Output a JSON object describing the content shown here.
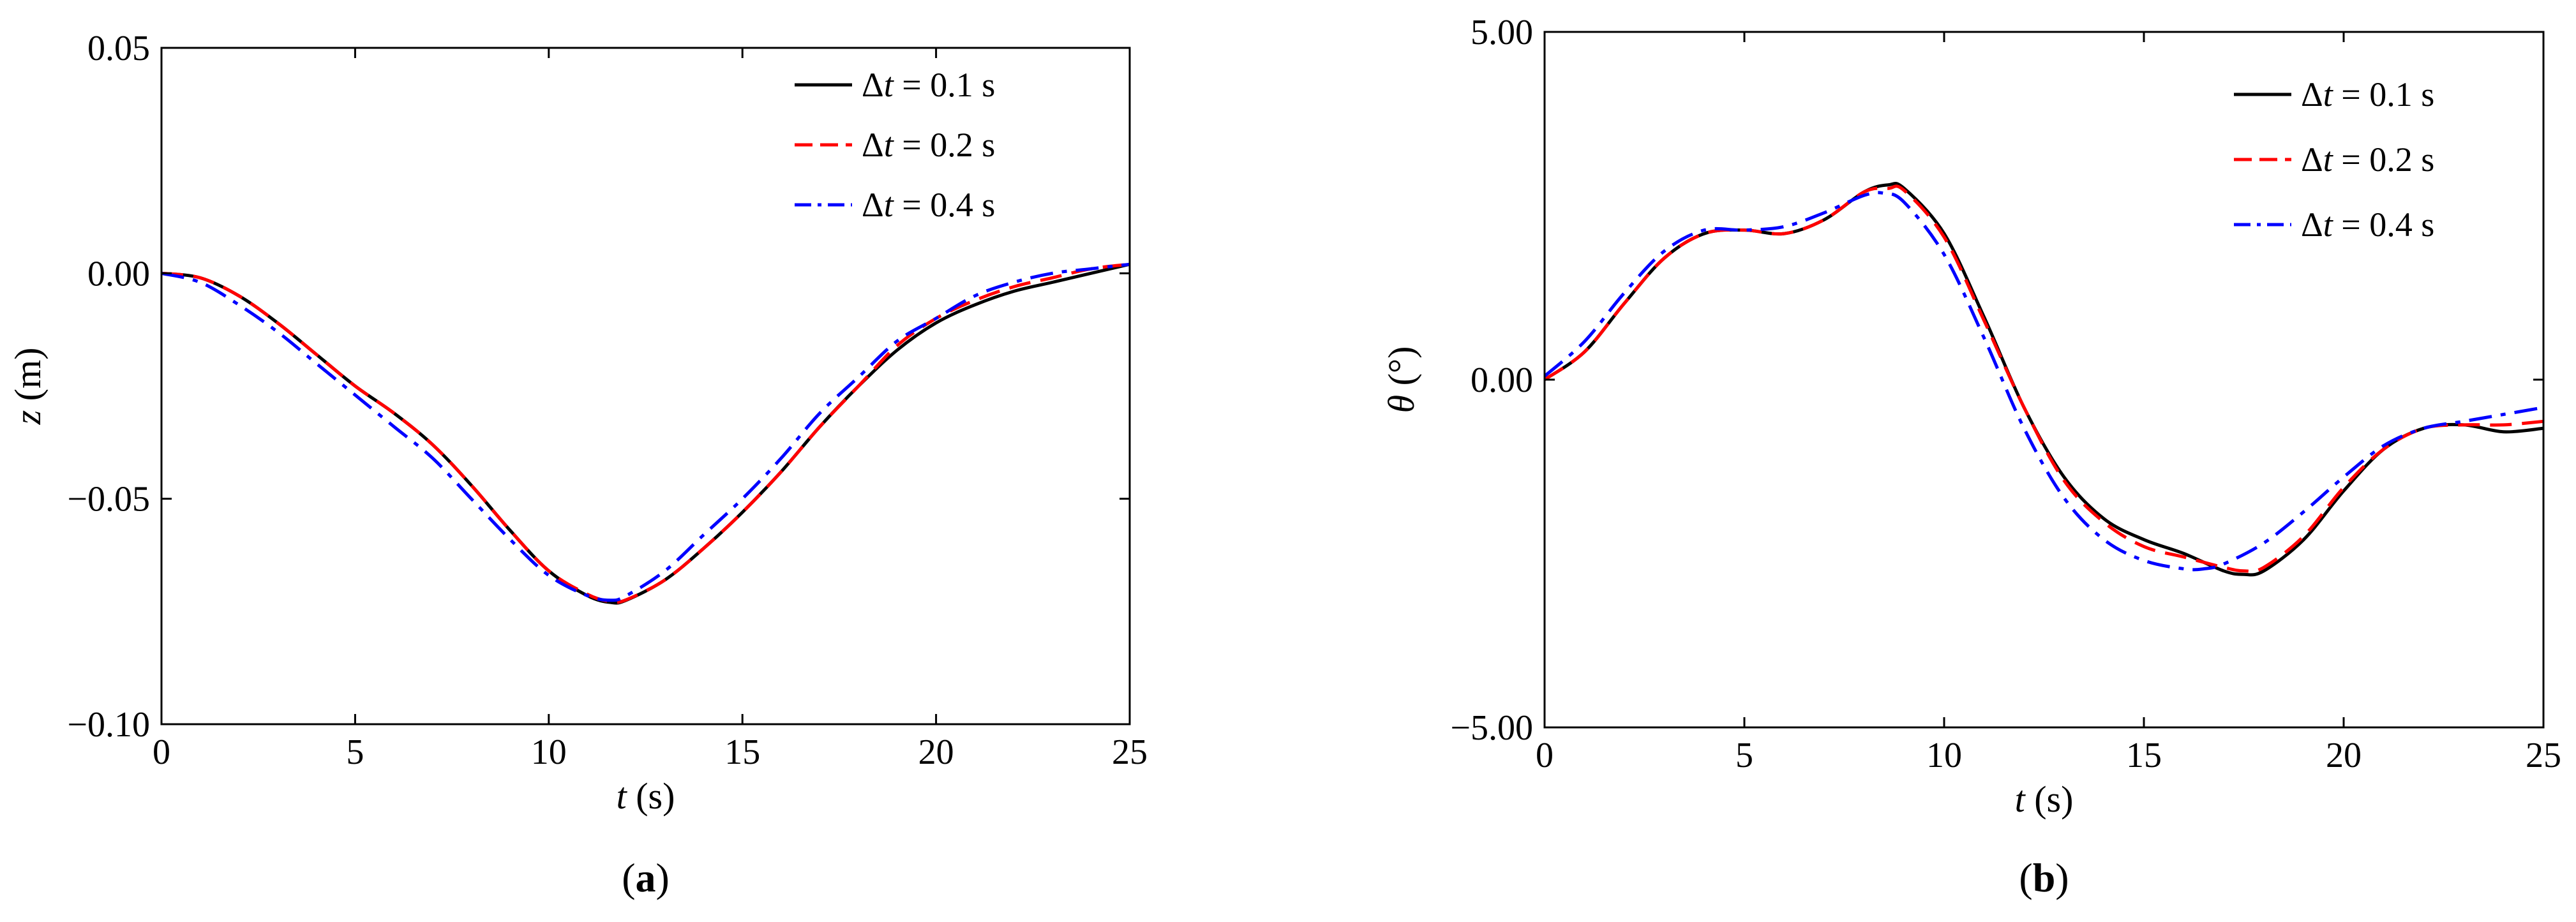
{
  "chart_data": [
    {
      "type": "line",
      "panel_label": "(a)",
      "panel_letter": "a",
      "xlabel_var": "t",
      "xlabel_unit": " (s)",
      "ylabel_var": "z",
      "ylabel_unit": " (m)",
      "xlim": [
        0,
        25
      ],
      "ylim": [
        -0.1,
        0.05
      ],
      "xticks": [
        0,
        5,
        10,
        15,
        20,
        25
      ],
      "xtick_labels": [
        "0",
        "5",
        "10",
        "15",
        "20",
        "25"
      ],
      "yticks": [
        -0.1,
        -0.05,
        0.0,
        0.05
      ],
      "ytick_labels": [
        "−0.10",
        "−0.05",
        "0.00",
        "0.05"
      ],
      "grid": false,
      "legend_position": "top-right",
      "series": [
        {
          "name": "Δt = 0.1 s",
          "legend_delta": "Δ",
          "legend_var": "t",
          "legend_rest": " = 0.1 s",
          "color": "#000000",
          "dash": "solid",
          "x": [
            0,
            1,
            2,
            3,
            4,
            5,
            6,
            7,
            8,
            9,
            10,
            11,
            11.6,
            12,
            13,
            14,
            15,
            16,
            17,
            18,
            19,
            20,
            21,
            22,
            23,
            24,
            25
          ],
          "y": [
            0.0,
            -0.001,
            -0.005,
            -0.011,
            -0.018,
            -0.025,
            -0.031,
            -0.038,
            -0.047,
            -0.057,
            -0.066,
            -0.0715,
            -0.073,
            -0.0725,
            -0.068,
            -0.061,
            -0.053,
            -0.044,
            -0.034,
            -0.025,
            -0.017,
            -0.011,
            -0.007,
            -0.004,
            -0.002,
            0.0,
            0.002
          ]
        },
        {
          "name": "Δt = 0.2 s",
          "legend_delta": "Δ",
          "legend_var": "t",
          "legend_rest": " = 0.2 s",
          "color": "#ff0000",
          "dash": "dashed",
          "x": [
            0,
            1,
            2,
            3,
            4,
            5,
            6,
            7,
            8,
            9,
            10,
            11,
            11.6,
            12,
            13,
            14,
            15,
            16,
            17,
            18,
            19,
            20,
            21,
            22,
            23,
            24,
            25
          ],
          "y": [
            0.0,
            -0.001,
            -0.005,
            -0.011,
            -0.018,
            -0.025,
            -0.031,
            -0.038,
            -0.047,
            -0.057,
            -0.066,
            -0.0712,
            -0.0728,
            -0.0724,
            -0.068,
            -0.061,
            -0.053,
            -0.044,
            -0.034,
            -0.025,
            -0.016,
            -0.01,
            -0.006,
            -0.003,
            -0.001,
            0.001,
            0.002
          ]
        },
        {
          "name": "Δt = 0.4 s",
          "legend_delta": "Δ",
          "legend_var": "t",
          "legend_rest": " = 0.4 s",
          "color": "#0000ff",
          "dash": "dashdot",
          "x": [
            0,
            1,
            2,
            3,
            4,
            5,
            6,
            7,
            8,
            9,
            10,
            11,
            11.6,
            12,
            13,
            14,
            15,
            16,
            17,
            18,
            19,
            20,
            21,
            22,
            23,
            24,
            25
          ],
          "y": [
            0.0,
            -0.002,
            -0.007,
            -0.013,
            -0.02,
            -0.027,
            -0.034,
            -0.041,
            -0.05,
            -0.059,
            -0.067,
            -0.0715,
            -0.0725,
            -0.0715,
            -0.066,
            -0.058,
            -0.05,
            -0.041,
            -0.031,
            -0.023,
            -0.015,
            -0.01,
            -0.005,
            -0.002,
            0.0,
            0.001,
            0.002
          ]
        }
      ]
    },
    {
      "type": "line",
      "panel_label": "(b)",
      "panel_letter": "b",
      "xlabel_var": "t",
      "xlabel_unit": " (s)",
      "ylabel_var": "θ",
      "ylabel_unit": " (°)",
      "xlim": [
        0,
        25
      ],
      "ylim": [
        -5.0,
        5.0
      ],
      "xticks": [
        0,
        5,
        10,
        15,
        20,
        25
      ],
      "xtick_labels": [
        "0",
        "5",
        "10",
        "15",
        "20",
        "25"
      ],
      "yticks": [
        -5.0,
        0.0,
        5.0
      ],
      "ytick_labels": [
        "−5.00",
        "0.00",
        "5.00"
      ],
      "grid": false,
      "legend_position": "top-right",
      "series": [
        {
          "name": "Δt = 0.1 s",
          "legend_delta": "Δ",
          "legend_var": "t",
          "legend_rest": " = 0.1 s",
          "color": "#000000",
          "dash": "solid",
          "x": [
            0,
            1,
            2,
            3,
            4,
            5,
            6,
            7,
            8,
            8.6,
            9,
            10,
            11,
            12,
            13,
            14,
            15,
            16,
            17,
            17.5,
            18,
            19,
            20,
            21,
            22,
            23,
            24,
            25
          ],
          "y": [
            0.0,
            0.4,
            1.1,
            1.75,
            2.1,
            2.15,
            2.1,
            2.3,
            2.7,
            2.8,
            2.75,
            2.1,
            0.9,
            -0.4,
            -1.4,
            -2.0,
            -2.3,
            -2.5,
            -2.75,
            -2.8,
            -2.75,
            -2.3,
            -1.6,
            -1.0,
            -0.7,
            -0.65,
            -0.75,
            -0.7
          ]
        },
        {
          "name": "Δt = 0.2 s",
          "legend_delta": "Δ",
          "legend_var": "t",
          "legend_rest": " = 0.2 s",
          "color": "#ff0000",
          "dash": "dashed",
          "x": [
            0,
            1,
            2,
            3,
            4,
            5,
            6,
            7,
            8,
            8.6,
            9,
            10,
            11,
            12,
            13,
            14,
            15,
            16,
            17,
            17.5,
            18,
            19,
            20,
            21,
            22,
            23,
            24,
            25
          ],
          "y": [
            0.0,
            0.4,
            1.1,
            1.75,
            2.1,
            2.15,
            2.1,
            2.3,
            2.7,
            2.75,
            2.72,
            2.05,
            0.85,
            -0.4,
            -1.45,
            -2.05,
            -2.4,
            -2.55,
            -2.7,
            -2.75,
            -2.7,
            -2.25,
            -1.55,
            -1.0,
            -0.7,
            -0.65,
            -0.65,
            -0.6
          ]
        },
        {
          "name": "Δt = 0.4 s",
          "legend_delta": "Δ",
          "legend_var": "t",
          "legend_rest": " = 0.4 s",
          "color": "#0000ff",
          "dash": "dashdot",
          "x": [
            0,
            1,
            2,
            3,
            4,
            5,
            6,
            7,
            8,
            8.5,
            9,
            10,
            11,
            12,
            13,
            14,
            15,
            16,
            16.5,
            17,
            18,
            19,
            20,
            21,
            22,
            23,
            24,
            25
          ],
          "y": [
            0.05,
            0.55,
            1.25,
            1.85,
            2.15,
            2.15,
            2.2,
            2.4,
            2.65,
            2.68,
            2.55,
            1.8,
            0.6,
            -0.7,
            -1.7,
            -2.3,
            -2.6,
            -2.72,
            -2.72,
            -2.65,
            -2.35,
            -1.9,
            -1.4,
            -0.95,
            -0.7,
            -0.6,
            -0.5,
            -0.4
          ]
        }
      ]
    }
  ]
}
